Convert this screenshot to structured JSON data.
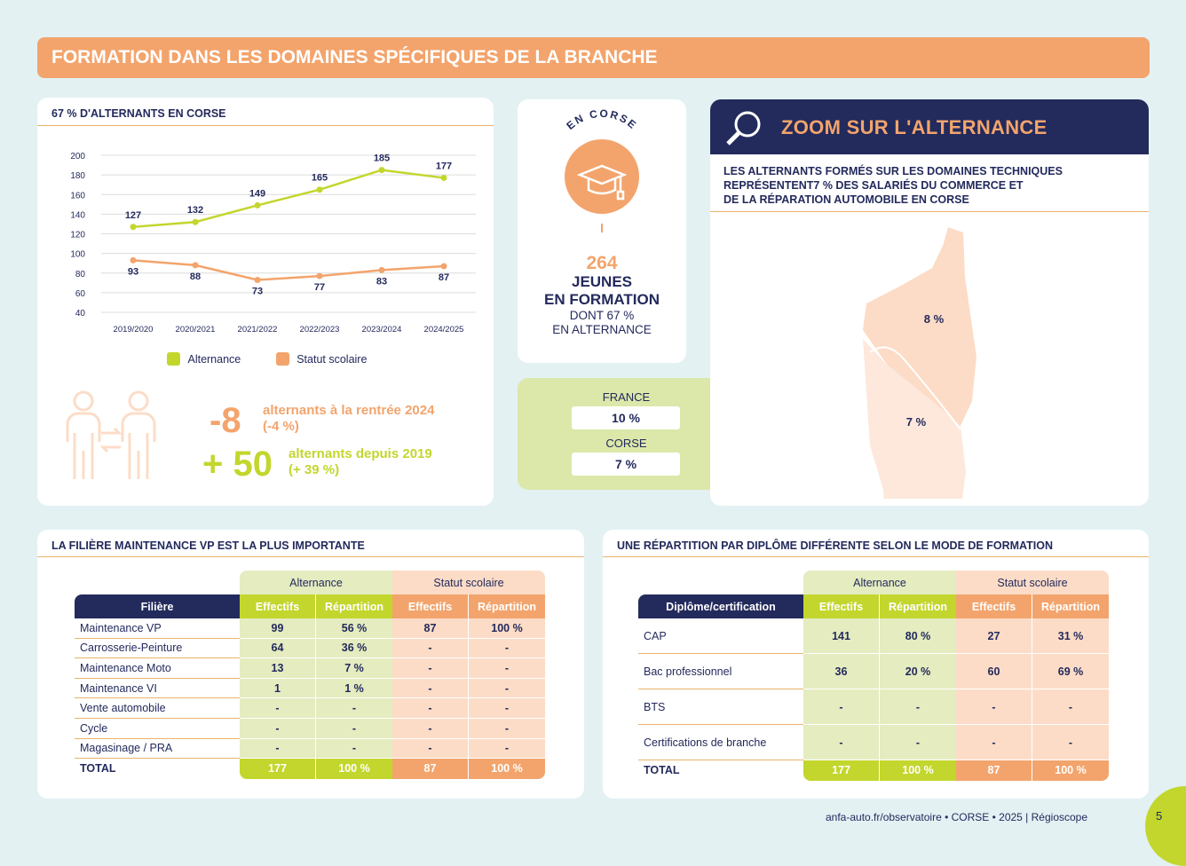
{
  "banner": {
    "title": "FORMATION DANS LES DOMAINES SPÉCIFIQUES DE LA BRANCHE"
  },
  "chart_card": {
    "title": "67 % D'ALTERNANTS EN CORSE"
  },
  "chart_data": {
    "type": "line",
    "categories": [
      "2019/2020",
      "2020/2021",
      "2021/2022",
      "2022/2023",
      "2023/2024",
      "2024/2025"
    ],
    "series": [
      {
        "name": "Alternance",
        "values": [
          127,
          132,
          149,
          165,
          185,
          177
        ],
        "color": "#c3d62d"
      },
      {
        "name": "Statut scolaire",
        "values": [
          93,
          88,
          73,
          77,
          83,
          87
        ],
        "color": "#f3a46c"
      }
    ],
    "ylim": [
      40,
      200
    ],
    "yticks": [
      "200",
      "180",
      "160",
      "140",
      "120",
      "100",
      "80",
      "60",
      "40"
    ],
    "grid": true,
    "legend": "bottom"
  },
  "stats": {
    "s1_value": "-8",
    "s1_label": "alternants à la rentrée 2024",
    "s1_sub": "(-4 %)",
    "s2_value": "+ 50",
    "s2_label": "alternants depuis 2019",
    "s2_sub": "(+ 39 %)"
  },
  "center": {
    "arc": "EN CORSE",
    "number": "264",
    "l1": "JEUNES",
    "l2": "EN FORMATION",
    "l3": "DONT 67 %",
    "l4": "EN ALTERNANCE"
  },
  "compare": {
    "france_label": "FRANCE",
    "france_value": "10 %",
    "corse_label": "CORSE",
    "corse_value": "7 %"
  },
  "zoom": {
    "title": "ZOOM SUR L'ALTERNANCE",
    "sub1": "LES ALTERNANTS FORMÉS SUR LES DOMAINES TECHNIQUES",
    "sub2": "REPRÉSENTENT7 % DES SALARIÉS DU COMMERCE ET",
    "sub3": "DE LA RÉPARATION AUTOMOBILE EN CORSE",
    "map_top": "8 %",
    "map_bottom": "7 %"
  },
  "table1": {
    "title": "LA FILIÈRE MAINTENANCE VP EST LA PLUS IMPORTANTE",
    "group_alt": "Alternance",
    "group_sco": "Statut scolaire",
    "col_label": "Filière",
    "col_eff": "Effectifs",
    "col_rep": "Répartition",
    "rows": [
      {
        "label": "Maintenance VP",
        "ae": "99",
        "ar": "56 %",
        "se": "87",
        "sr": "100 %"
      },
      {
        "label": "Carrosserie-Peinture",
        "ae": "64",
        "ar": "36 %",
        "se": "-",
        "sr": "-"
      },
      {
        "label": "Maintenance Moto",
        "ae": "13",
        "ar": "7 %",
        "se": "-",
        "sr": "-"
      },
      {
        "label": "Maintenance VI",
        "ae": "1",
        "ar": "1 %",
        "se": "-",
        "sr": "-"
      },
      {
        "label": "Vente automobile",
        "ae": "-",
        "ar": "-",
        "se": "-",
        "sr": "-"
      },
      {
        "label": "Cycle",
        "ae": "-",
        "ar": "-",
        "se": "-",
        "sr": "-"
      },
      {
        "label": "Magasinage / PRA",
        "ae": "-",
        "ar": "-",
        "se": "-",
        "sr": "-"
      }
    ],
    "total": {
      "label": "TOTAL",
      "ae": "177",
      "ar": "100 %",
      "se": "87",
      "sr": "100 %"
    }
  },
  "table2": {
    "title": "UNE RÉPARTITION PAR DIPLÔME DIFFÉRENTE SELON LE MODE DE FORMATION",
    "group_alt": "Alternance",
    "group_sco": "Statut scolaire",
    "col_label": "Diplôme/certification",
    "col_eff": "Effectifs",
    "col_rep": "Répartition",
    "rows": [
      {
        "label": "CAP",
        "ae": "141",
        "ar": "80 %",
        "se": "27",
        "sr": "31 %"
      },
      {
        "label": "Bac professionnel",
        "ae": "36",
        "ar": "20 %",
        "se": "60",
        "sr": "69 %"
      },
      {
        "label": "BTS",
        "ae": "-",
        "ar": "-",
        "se": "-",
        "sr": "-"
      },
      {
        "label": "Certifications de branche",
        "ae": "-",
        "ar": "-",
        "se": "-",
        "sr": "-"
      }
    ],
    "total": {
      "label": "TOTAL",
      "ae": "177",
      "ar": "100 %",
      "se": "87",
      "sr": "100 %"
    }
  },
  "footer": {
    "text": "anfa-auto.fr/observatoire  •  CORSE  •  2025 | Régioscope",
    "page": "5"
  }
}
